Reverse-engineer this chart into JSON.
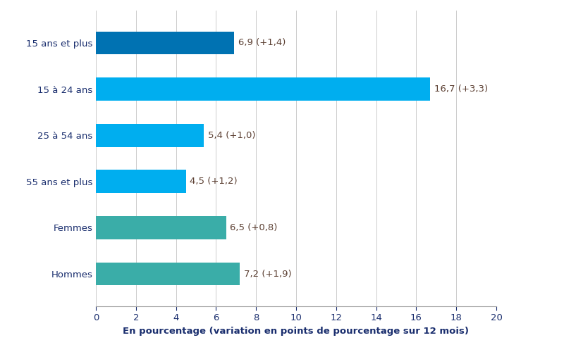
{
  "categories": [
    "15 ans et plus",
    "15 à 24 ans",
    "25 à 54 ans",
    "55 ans et plus",
    "Femmes",
    "Hommes"
  ],
  "values": [
    6.9,
    16.7,
    5.4,
    4.5,
    6.5,
    7.2
  ],
  "labels": [
    "6,9 (+1,4)",
    "16,7 (+3,3)",
    "5,4 (+1,0)",
    "4,5 (+1,2)",
    "6,5 (+0,8)",
    "7,2 (+1,9)"
  ],
  "colors": [
    "#0072B2",
    "#00AEEF",
    "#00AEEF",
    "#00AEEF",
    "#3AADA8",
    "#3AADA8"
  ],
  "xlabel": "En pourcentage (variation en points de pourcentage sur 12 mois)",
  "xlim": [
    0,
    20
  ],
  "xticks": [
    0,
    2,
    4,
    6,
    8,
    10,
    12,
    14,
    16,
    18,
    20
  ],
  "label_color": "#5C4033",
  "text_color": "#1a2e6e",
  "label_fontsize": 9.5,
  "tick_fontsize": 9.5,
  "xlabel_fontsize": 9.5,
  "category_fontsize": 9.5,
  "background_color": "#ffffff",
  "bar_height": 0.5
}
